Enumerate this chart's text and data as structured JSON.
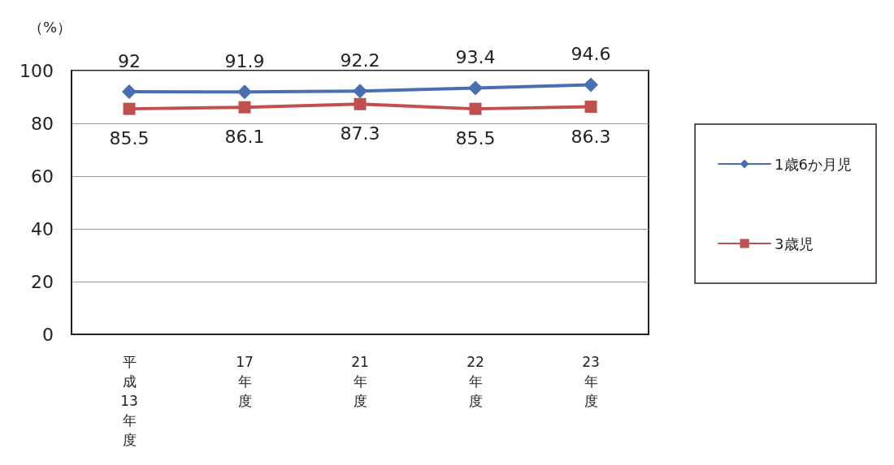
{
  "chart_data": {
    "type": "line",
    "ylabel": "（%）",
    "categories": [
      "平成13年度",
      "17年度",
      "21年度",
      "22年度",
      "23年度"
    ],
    "series": [
      {
        "name": "1歳6か月児",
        "color": "#4a6fb0",
        "marker": "diamond",
        "values": [
          92,
          91.9,
          92.2,
          93.4,
          94.6
        ]
      },
      {
        "name": "3歳児",
        "color": "#c0504d",
        "marker": "square",
        "values": [
          85.5,
          86.1,
          87.3,
          85.5,
          86.3
        ]
      }
    ],
    "ylim": [
      0,
      100
    ],
    "yticks": [
      0,
      20,
      40,
      60,
      80,
      100
    ],
    "grid": "y",
    "legend": "right",
    "data_labels": true
  }
}
